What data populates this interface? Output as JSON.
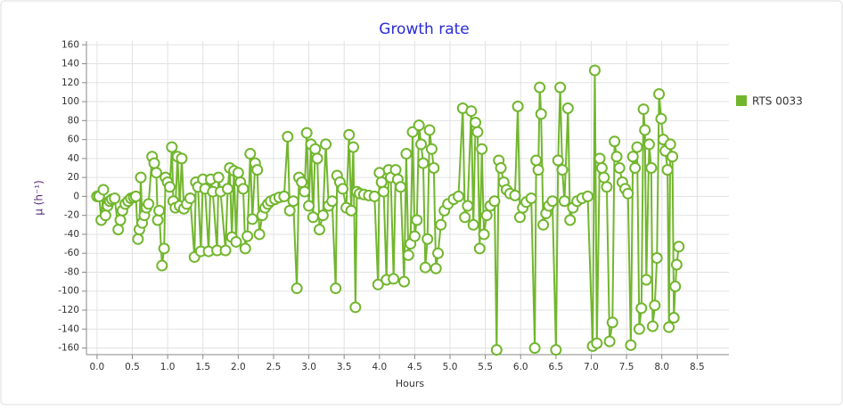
{
  "chart_data": {
    "type": "line",
    "title": "Growth rate",
    "x_label": "Hours",
    "y_label": "μ (h⁻¹)",
    "x": [
      0.0,
      0.03,
      0.06,
      0.09,
      0.12,
      0.15,
      0.18,
      0.21,
      0.25,
      0.3,
      0.33,
      0.36,
      0.4,
      0.44,
      0.48,
      0.52,
      0.55,
      0.58,
      0.6,
      0.62,
      0.64,
      0.67,
      0.7,
      0.73,
      0.78,
      0.81,
      0.84,
      0.86,
      0.88,
      0.92,
      0.95,
      0.97,
      1.0,
      1.03,
      1.06,
      1.08,
      1.11,
      1.14,
      1.17,
      1.2,
      1.23,
      1.27,
      1.32,
      1.38,
      1.4,
      1.43,
      1.47,
      1.5,
      1.53,
      1.58,
      1.61,
      1.64,
      1.7,
      1.72,
      1.75,
      1.82,
      1.85,
      1.88,
      1.91,
      1.94,
      1.97,
      2.0,
      2.03,
      2.07,
      2.1,
      2.13,
      2.17,
      2.2,
      2.24,
      2.27,
      2.3,
      2.34,
      2.38,
      2.42,
      2.46,
      2.52,
      2.58,
      2.65,
      2.7,
      2.73,
      2.78,
      2.83,
      2.86,
      2.9,
      2.94,
      2.97,
      3.0,
      3.03,
      3.06,
      3.09,
      3.12,
      3.15,
      3.2,
      3.24,
      3.28,
      3.33,
      3.38,
      3.4,
      3.44,
      3.48,
      3.53,
      3.57,
      3.6,
      3.63,
      3.66,
      3.68,
      3.72,
      3.78,
      3.85,
      3.93,
      3.98,
      4.0,
      4.03,
      4.06,
      4.1,
      4.13,
      4.16,
      4.2,
      4.23,
      4.26,
      4.3,
      4.35,
      4.38,
      4.41,
      4.44,
      4.47,
      4.5,
      4.53,
      4.56,
      4.59,
      4.62,
      4.65,
      4.68,
      4.71,
      4.74,
      4.77,
      4.8,
      4.83,
      4.87,
      4.92,
      4.97,
      5.05,
      5.12,
      5.18,
      5.21,
      5.25,
      5.3,
      5.33,
      5.36,
      5.39,
      5.42,
      5.45,
      5.48,
      5.52,
      5.57,
      5.63,
      5.66,
      5.69,
      5.72,
      5.76,
      5.8,
      5.85,
      5.92,
      5.96,
      5.99,
      6.03,
      6.08,
      6.15,
      6.2,
      6.22,
      6.25,
      6.27,
      6.29,
      6.32,
      6.36,
      6.4,
      6.45,
      6.5,
      6.53,
      6.56,
      6.59,
      6.62,
      6.67,
      6.7,
      6.74,
      6.8,
      6.87,
      6.95,
      7.02,
      7.05,
      7.08,
      7.12,
      7.15,
      7.18,
      7.22,
      7.26,
      7.3,
      7.33,
      7.36,
      7.4,
      7.44,
      7.48,
      7.52,
      7.56,
      7.59,
      7.62,
      7.65,
      7.68,
      7.71,
      7.74,
      7.76,
      7.78,
      7.82,
      7.85,
      7.87,
      7.9,
      7.93,
      7.96,
      7.99,
      8.02,
      8.05,
      8.08,
      8.1,
      8.12,
      8.15,
      8.17,
      8.19,
      8.21,
      8.24
    ],
    "series": [
      {
        "name": "RTS 0033",
        "color": "#72b62e",
        "values": [
          0,
          0,
          -25,
          7,
          -20,
          -10,
          -5,
          -3,
          -2,
          -35,
          -25,
          -15,
          -8,
          -5,
          -2,
          -1,
          0,
          -45,
          -35,
          20,
          -28,
          -20,
          -12,
          -8,
          42,
          35,
          25,
          -25,
          -15,
          -73,
          -55,
          20,
          15,
          10,
          52,
          -5,
          -12,
          42,
          -10,
          40,
          -13,
          -8,
          -2,
          -64,
          15,
          10,
          -58,
          18,
          8,
          -58,
          18,
          5,
          -57,
          20,
          5,
          -57,
          8,
          30,
          -43,
          27,
          -48,
          25,
          15,
          8,
          -55,
          -42,
          45,
          -24,
          35,
          28,
          -40,
          -20,
          -12,
          -8,
          -5,
          -3,
          -1,
          0,
          63,
          -15,
          -5,
          -97,
          20,
          15,
          5,
          67,
          -10,
          55,
          -22,
          50,
          40,
          -35,
          -20,
          55,
          -10,
          -5,
          -97,
          22,
          15,
          8,
          -12,
          65,
          -15,
          52,
          -117,
          5,
          3,
          2,
          1,
          0,
          -93,
          25,
          15,
          5,
          -88,
          28,
          20,
          -87,
          28,
          18,
          10,
          -90,
          45,
          -62,
          -50,
          68,
          -42,
          -25,
          75,
          55,
          35,
          -75,
          -45,
          70,
          50,
          30,
          -76,
          -60,
          -30,
          -15,
          -8,
          -3,
          0,
          93,
          -22,
          -10,
          90,
          -30,
          78,
          68,
          -55,
          50,
          -40,
          -20,
          -10,
          -5,
          -162,
          38,
          30,
          15,
          7,
          3,
          1,
          95,
          -22,
          -12,
          -6,
          -2,
          -160,
          38,
          28,
          115,
          87,
          -30,
          -18,
          -10,
          -5,
          -162,
          38,
          115,
          28,
          -5,
          93,
          -25,
          -12,
          -5,
          -2,
          0,
          -158,
          133,
          -155,
          40,
          30,
          20,
          10,
          -153,
          -133,
          58,
          42,
          30,
          15,
          8,
          3,
          -157,
          42,
          30,
          52,
          -140,
          -118,
          92,
          70,
          -88,
          55,
          30,
          -137,
          -115,
          -65,
          108,
          82,
          60,
          48,
          28,
          -138,
          55,
          42,
          -128,
          -95,
          -72,
          -53
        ]
      }
    ],
    "xlim": [
      -0.15,
      8.95
    ],
    "ylim": [
      -167,
      164
    ],
    "xticks": [
      {
        "value": 0,
        "label": "0.0"
      },
      0.5,
      {
        "value": 1,
        "label": "1.0"
      },
      1.5,
      {
        "value": 2,
        "label": "2.0"
      },
      2.5,
      {
        "value": 3,
        "label": "3.0"
      },
      3.5,
      {
        "value": 4,
        "label": "4.0"
      },
      4.5,
      {
        "value": 5,
        "label": "5.0"
      },
      5.5,
      {
        "value": 6,
        "label": "6.0"
      },
      6.5,
      {
        "value": 7,
        "label": "7.0"
      },
      7.5,
      {
        "value": 8,
        "label": "8.0"
      },
      8.5
    ],
    "yticks": [
      -160,
      -140,
      -120,
      -100,
      -80,
      -60,
      -40,
      -20,
      0,
      20,
      40,
      60,
      80,
      100,
      120,
      140,
      160
    ],
    "grid": true,
    "legend": "right"
  }
}
